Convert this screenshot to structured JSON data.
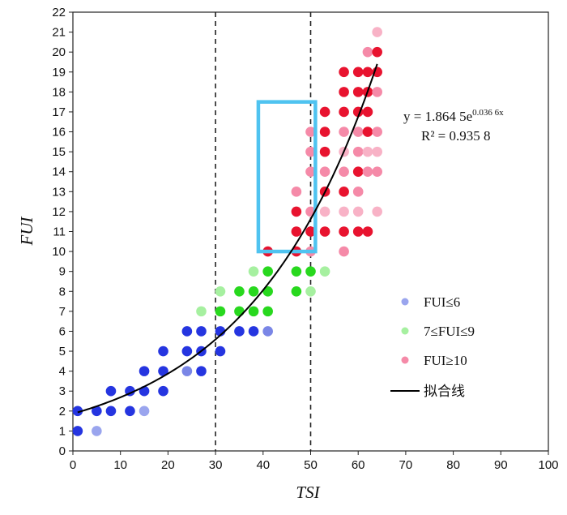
{
  "chart_data": {
    "type": "scatter",
    "xlabel": "TSI",
    "ylabel": "FUI",
    "xlim": [
      0,
      100
    ],
    "ylim": [
      0,
      22
    ],
    "x_ticks": [
      0,
      10,
      20,
      30,
      40,
      50,
      60,
      70,
      80,
      90,
      100
    ],
    "y_ticks": [
      0,
      1,
      2,
      3,
      4,
      5,
      6,
      7,
      8,
      9,
      10,
      11,
      12,
      13,
      14,
      15,
      16,
      17,
      18,
      19,
      20,
      21,
      22
    ],
    "reference_lines_x": [
      30,
      50
    ],
    "highlight_box": {
      "x0": 39,
      "x1": 51,
      "y0": 10,
      "y1": 17.5,
      "color": "#4fc3f0"
    },
    "fit": {
      "a": 1.8645,
      "b": 0.0366,
      "x_range": [
        1,
        64
      ],
      "equation_prefix": "y = 1.864 5e",
      "equation_exponent": "0.036 6x",
      "r2_text": "R² = 0.935 8",
      "color": "#000000"
    },
    "series": [
      {
        "name": "FUI≤6",
        "legend_color": "#9aa5ee",
        "points": [
          {
            "x": 1,
            "y": 1,
            "c": "#2535e0"
          },
          {
            "x": 5,
            "y": 1,
            "c": "#9aa5ee"
          },
          {
            "x": 1,
            "y": 2,
            "c": "#2535e0"
          },
          {
            "x": 5,
            "y": 2,
            "c": "#2535e0"
          },
          {
            "x": 8,
            "y": 2,
            "c": "#2535e0"
          },
          {
            "x": 12,
            "y": 2,
            "c": "#2535e0"
          },
          {
            "x": 15,
            "y": 2,
            "c": "#9aa5ee"
          },
          {
            "x": 8,
            "y": 3,
            "c": "#2535e0"
          },
          {
            "x": 12,
            "y": 3,
            "c": "#2535e0"
          },
          {
            "x": 15,
            "y": 3,
            "c": "#2535e0"
          },
          {
            "x": 19,
            "y": 3,
            "c": "#2535e0"
          },
          {
            "x": 15,
            "y": 4,
            "c": "#2535e0"
          },
          {
            "x": 19,
            "y": 4,
            "c": "#2535e0"
          },
          {
            "x": 24,
            "y": 4,
            "c": "#7a86e6"
          },
          {
            "x": 27,
            "y": 4,
            "c": "#2535e0"
          },
          {
            "x": 19,
            "y": 5,
            "c": "#2535e0"
          },
          {
            "x": 24,
            "y": 5,
            "c": "#2535e0"
          },
          {
            "x": 27,
            "y": 5,
            "c": "#2535e0"
          },
          {
            "x": 31,
            "y": 5,
            "c": "#2535e0"
          },
          {
            "x": 24,
            "y": 6,
            "c": "#2535e0"
          },
          {
            "x": 27,
            "y": 6,
            "c": "#2535e0"
          },
          {
            "x": 31,
            "y": 6,
            "c": "#2535e0"
          },
          {
            "x": 35,
            "y": 6,
            "c": "#2535e0"
          },
          {
            "x": 38,
            "y": 6,
            "c": "#2535e0"
          },
          {
            "x": 41,
            "y": 6,
            "c": "#7a86e6"
          }
        ]
      },
      {
        "name": "7≤FUI≤9",
        "legend_color": "#a6f0a0",
        "points": [
          {
            "x": 27,
            "y": 7,
            "c": "#a6f0a0"
          },
          {
            "x": 31,
            "y": 7,
            "c": "#28d81e"
          },
          {
            "x": 35,
            "y": 7,
            "c": "#28d81e"
          },
          {
            "x": 38,
            "y": 7,
            "c": "#28d81e"
          },
          {
            "x": 41,
            "y": 7,
            "c": "#28d81e"
          },
          {
            "x": 31,
            "y": 8,
            "c": "#a6f0a0"
          },
          {
            "x": 35,
            "y": 8,
            "c": "#28d81e"
          },
          {
            "x": 38,
            "y": 8,
            "c": "#28d81e"
          },
          {
            "x": 41,
            "y": 8,
            "c": "#28d81e"
          },
          {
            "x": 47,
            "y": 8,
            "c": "#28d81e"
          },
          {
            "x": 50,
            "y": 8,
            "c": "#a6f0a0"
          },
          {
            "x": 38,
            "y": 9,
            "c": "#a6f0a0"
          },
          {
            "x": 41,
            "y": 9,
            "c": "#28d81e"
          },
          {
            "x": 47,
            "y": 9,
            "c": "#28d81e"
          },
          {
            "x": 50,
            "y": 9,
            "c": "#28d81e"
          },
          {
            "x": 53,
            "y": 9,
            "c": "#a6f0a0"
          }
        ]
      },
      {
        "name": "FUI≥10",
        "legend_color": "#f58aa8",
        "points": [
          {
            "x": 41,
            "y": 10,
            "c": "#e8132f"
          },
          {
            "x": 47,
            "y": 10,
            "c": "#e8132f"
          },
          {
            "x": 50,
            "y": 10,
            "c": "#f58aa8"
          },
          {
            "x": 57,
            "y": 10,
            "c": "#f58aa8"
          },
          {
            "x": 47,
            "y": 11,
            "c": "#e8132f"
          },
          {
            "x": 50,
            "y": 11,
            "c": "#e8132f"
          },
          {
            "x": 53,
            "y": 11,
            "c": "#e8132f"
          },
          {
            "x": 57,
            "y": 11,
            "c": "#e8132f"
          },
          {
            "x": 60,
            "y": 11,
            "c": "#e8132f"
          },
          {
            "x": 62,
            "y": 11,
            "c": "#e8132f"
          },
          {
            "x": 47,
            "y": 12,
            "c": "#e8132f"
          },
          {
            "x": 50,
            "y": 12,
            "c": "#f58aa8"
          },
          {
            "x": 53,
            "y": 12,
            "c": "#f8b2c6"
          },
          {
            "x": 57,
            "y": 12,
            "c": "#f8b2c6"
          },
          {
            "x": 60,
            "y": 12,
            "c": "#f8b2c6"
          },
          {
            "x": 64,
            "y": 12,
            "c": "#f8b2c6"
          },
          {
            "x": 47,
            "y": 13,
            "c": "#f58aa8"
          },
          {
            "x": 53,
            "y": 13,
            "c": "#e8132f"
          },
          {
            "x": 57,
            "y": 13,
            "c": "#e8132f"
          },
          {
            "x": 60,
            "y": 13,
            "c": "#f58aa8"
          },
          {
            "x": 50,
            "y": 14,
            "c": "#f58aa8"
          },
          {
            "x": 53,
            "y": 14,
            "c": "#f58aa8"
          },
          {
            "x": 57,
            "y": 14,
            "c": "#f58aa8"
          },
          {
            "x": 60,
            "y": 14,
            "c": "#e8132f"
          },
          {
            "x": 62,
            "y": 14,
            "c": "#f58aa8"
          },
          {
            "x": 64,
            "y": 14,
            "c": "#f58aa8"
          },
          {
            "x": 50,
            "y": 15,
            "c": "#f58aa8"
          },
          {
            "x": 53,
            "y": 15,
            "c": "#e8132f"
          },
          {
            "x": 57,
            "y": 15,
            "c": "#f8b2c6"
          },
          {
            "x": 60,
            "y": 15,
            "c": "#f58aa8"
          },
          {
            "x": 62,
            "y": 15,
            "c": "#f8b2c6"
          },
          {
            "x": 64,
            "y": 15,
            "c": "#f8b2c6"
          },
          {
            "x": 50,
            "y": 16,
            "c": "#f58aa8"
          },
          {
            "x": 53,
            "y": 16,
            "c": "#e8132f"
          },
          {
            "x": 57,
            "y": 16,
            "c": "#f58aa8"
          },
          {
            "x": 60,
            "y": 16,
            "c": "#f58aa8"
          },
          {
            "x": 62,
            "y": 16,
            "c": "#e8132f"
          },
          {
            "x": 64,
            "y": 16,
            "c": "#f58aa8"
          },
          {
            "x": 53,
            "y": 17,
            "c": "#e8132f"
          },
          {
            "x": 57,
            "y": 17,
            "c": "#e8132f"
          },
          {
            "x": 60,
            "y": 17,
            "c": "#e8132f"
          },
          {
            "x": 62,
            "y": 17,
            "c": "#e8132f"
          },
          {
            "x": 57,
            "y": 18,
            "c": "#e8132f"
          },
          {
            "x": 60,
            "y": 18,
            "c": "#e8132f"
          },
          {
            "x": 62,
            "y": 18,
            "c": "#e8132f"
          },
          {
            "x": 64,
            "y": 18,
            "c": "#f58aa8"
          },
          {
            "x": 57,
            "y": 19,
            "c": "#e8132f"
          },
          {
            "x": 60,
            "y": 19,
            "c": "#e8132f"
          },
          {
            "x": 62,
            "y": 19,
            "c": "#e8132f"
          },
          {
            "x": 64,
            "y": 19,
            "c": "#e8132f"
          },
          {
            "x": 62,
            "y": 20,
            "c": "#f58aa8"
          },
          {
            "x": 64,
            "y": 20,
            "c": "#e8132f"
          },
          {
            "x": 64,
            "y": 21,
            "c": "#f8b2c6"
          }
        ]
      }
    ],
    "legend": {
      "position": "bottom-right",
      "fit_label": "拟合线"
    }
  }
}
